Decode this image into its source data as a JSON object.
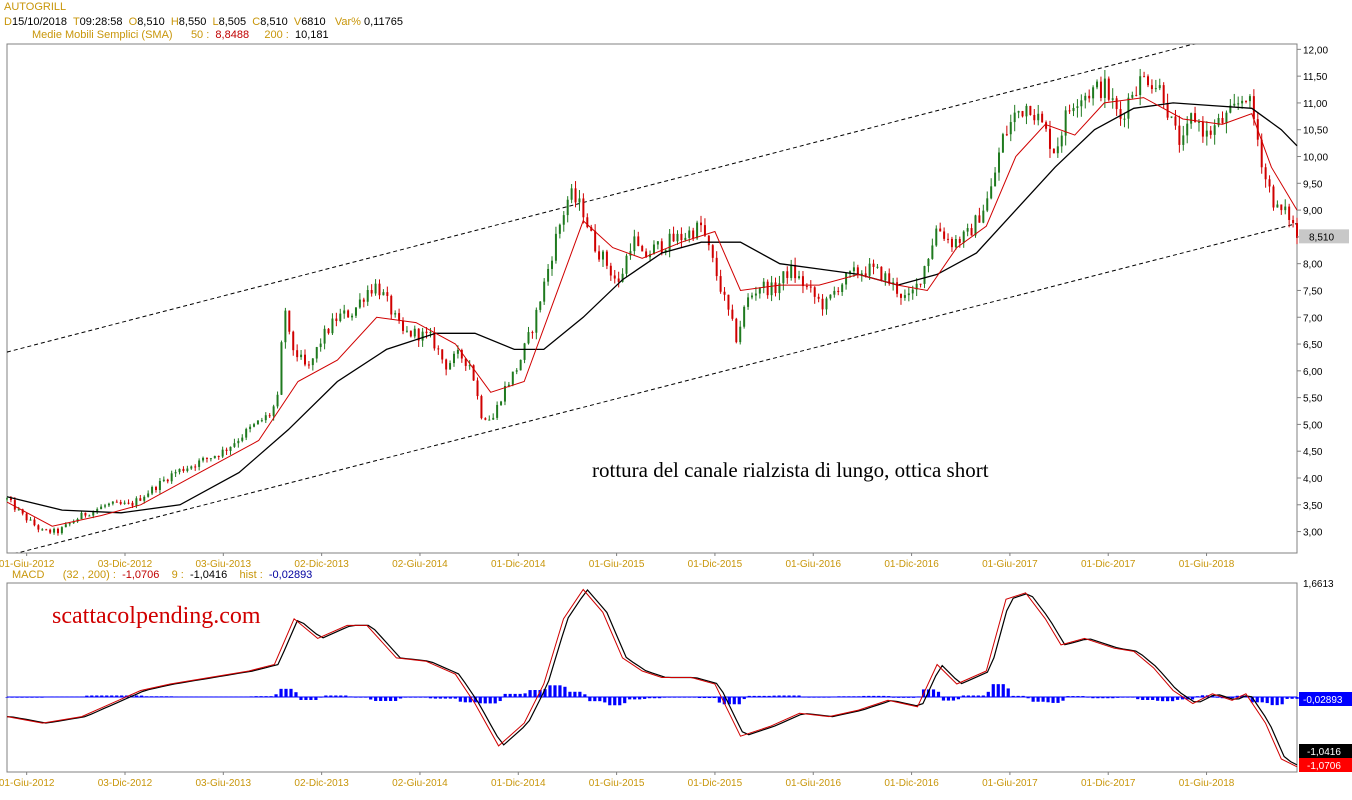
{
  "header": {
    "symbol": "AUTOGRILL",
    "d_label": "D",
    "date": "15/10/2018",
    "t_label": "T",
    "time": "09:28:58",
    "o_label": "O",
    "open": "8,510",
    "h_label": "H",
    "high": "8,550",
    "l_label": "L",
    "low": "8,505",
    "c_label": "C",
    "close": "8,510",
    "v_label": "V",
    "volume": "6810",
    "var_label": "Var%",
    "var": "0,11765"
  },
  "sma_header": {
    "label": "Medie Mobili Semplici (SMA)",
    "p1": "50 :",
    "v1": "8,8488",
    "p2": "200 :",
    "v2": "10,181"
  },
  "macd_header": {
    "label": "MACD",
    "params": "(32 , 200) :",
    "macd": "-1,0706",
    "sig_label": "9 :",
    "signal": "-1,0416",
    "hist_label": "hist :",
    "hist": "-0,02893"
  },
  "colors": {
    "price_up": "#1f7a1f",
    "price_down": "#d00000",
    "sma50": "#d00000",
    "sma200": "#000000",
    "macd": "#d00000",
    "signal": "#000000",
    "hist": "#0000ff",
    "annotation": "#d00000",
    "label_orange": "#c8960a"
  },
  "chart_data": [
    {
      "type": "candlestick",
      "title": "AUTOGRILL",
      "x_ticks": [
        "01-Giu-2012",
        "03-Dic-2012",
        "03-Giu-2013",
        "02-Dic-2013",
        "02-Giu-2014",
        "01-Dic-2014",
        "01-Giu-2015",
        "01-Dic-2015",
        "01-Giu-2016",
        "01-Dic-2016",
        "01-Giu-2017",
        "01-Dic-2017",
        "01-Giu-2018"
      ],
      "y_ticks": [
        "12,00",
        "11,50",
        "11,00",
        "10,50",
        "10,00",
        "9,50",
        "9,00",
        "8,50",
        "8,00",
        "7,50",
        "7,00",
        "6,50",
        "6,00",
        "5,50",
        "5,00",
        "4,50",
        "4,00",
        "3,50",
        "3,00"
      ],
      "ylim": [
        2.6,
        12.1
      ],
      "xlim": [
        2012.32,
        2018.88
      ],
      "last_price_label": "8,510",
      "annotation": "rottura del canale rialzista di lungo, ottica short",
      "price_path": [
        [
          2012.32,
          3.6
        ],
        [
          2012.4,
          3.3
        ],
        [
          2012.5,
          3.0
        ],
        [
          2012.58,
          3.0
        ],
        [
          2012.7,
          3.3
        ],
        [
          2012.83,
          3.5
        ],
        [
          2012.95,
          3.5
        ],
        [
          2013.08,
          3.85
        ],
        [
          2013.17,
          4.1
        ],
        [
          2013.3,
          4.3
        ],
        [
          2013.42,
          4.5
        ],
        [
          2013.55,
          4.9
        ],
        [
          2013.66,
          5.2
        ],
        [
          2013.7,
          5.5
        ],
        [
          2013.73,
          7.3
        ],
        [
          2013.76,
          6.5
        ],
        [
          2013.85,
          6.0
        ],
        [
          2013.92,
          6.6
        ],
        [
          2014.0,
          7.0
        ],
        [
          2014.08,
          7.1
        ],
        [
          2014.15,
          7.5
        ],
        [
          2014.2,
          7.6
        ],
        [
          2014.25,
          7.3
        ],
        [
          2014.33,
          6.7
        ],
        [
          2014.4,
          6.7
        ],
        [
          2014.48,
          6.6
        ],
        [
          2014.55,
          6.1
        ],
        [
          2014.62,
          6.3
        ],
        [
          2014.68,
          6.1
        ],
        [
          2014.73,
          5.2
        ],
        [
          2014.79,
          5.1
        ],
        [
          2014.84,
          5.6
        ],
        [
          2014.92,
          6.1
        ],
        [
          2015.0,
          6.9
        ],
        [
          2015.05,
          7.6
        ],
        [
          2015.12,
          8.6
        ],
        [
          2015.18,
          9.3
        ],
        [
          2015.25,
          9.0
        ],
        [
          2015.3,
          8.4
        ],
        [
          2015.37,
          8.0
        ],
        [
          2015.43,
          7.6
        ],
        [
          2015.5,
          8.5
        ],
        [
          2015.55,
          8.1
        ],
        [
          2015.62,
          8.3
        ],
        [
          2015.68,
          8.4
        ],
        [
          2015.75,
          8.5
        ],
        [
          2015.85,
          8.7
        ],
        [
          2015.92,
          7.9
        ],
        [
          2015.97,
          7.3
        ],
        [
          2016.03,
          6.6
        ],
        [
          2016.08,
          7.3
        ],
        [
          2016.15,
          7.6
        ],
        [
          2016.22,
          7.5
        ],
        [
          2016.3,
          7.9
        ],
        [
          2016.35,
          7.7
        ],
        [
          2016.42,
          7.4
        ],
        [
          2016.48,
          7.2
        ],
        [
          2016.55,
          7.6
        ],
        [
          2016.62,
          7.8
        ],
        [
          2016.7,
          7.9
        ],
        [
          2016.77,
          7.8
        ],
        [
          2016.85,
          7.5
        ],
        [
          2016.9,
          7.3
        ],
        [
          2016.95,
          7.6
        ],
        [
          2017.0,
          8.1
        ],
        [
          2017.05,
          8.7
        ],
        [
          2017.12,
          8.4
        ],
        [
          2017.2,
          8.5
        ],
        [
          2017.25,
          8.8
        ],
        [
          2017.32,
          9.3
        ],
        [
          2017.38,
          10.3
        ],
        [
          2017.45,
          10.8
        ],
        [
          2017.52,
          11.0
        ],
        [
          2017.58,
          10.6
        ],
        [
          2017.65,
          10.1
        ],
        [
          2017.7,
          10.7
        ],
        [
          2017.75,
          11.1
        ],
        [
          2017.82,
          11.2
        ],
        [
          2017.9,
          11.3
        ],
        [
          2017.98,
          10.7
        ],
        [
          2018.05,
          11.3
        ],
        [
          2018.12,
          11.5
        ],
        [
          2018.2,
          11.2
        ],
        [
          2018.25,
          10.5
        ],
        [
          2018.3,
          10.2
        ],
        [
          2018.35,
          10.8
        ],
        [
          2018.42,
          10.4
        ],
        [
          2018.48,
          10.6
        ],
        [
          2018.55,
          10.8
        ],
        [
          2018.62,
          11.2
        ],
        [
          2018.66,
          10.7
        ],
        [
          2018.72,
          9.6
        ],
        [
          2018.78,
          9.0
        ],
        [
          2018.84,
          8.9
        ],
        [
          2018.88,
          8.51
        ]
      ],
      "sma50_path": [
        [
          2012.32,
          3.55
        ],
        [
          2012.55,
          3.1
        ],
        [
          2012.8,
          3.3
        ],
        [
          2013.0,
          3.5
        ],
        [
          2013.3,
          4.1
        ],
        [
          2013.6,
          4.7
        ],
        [
          2013.8,
          5.8
        ],
        [
          2014.0,
          6.2
        ],
        [
          2014.2,
          7.0
        ],
        [
          2014.4,
          6.9
        ],
        [
          2014.6,
          6.5
        ],
        [
          2014.78,
          5.6
        ],
        [
          2014.95,
          5.8
        ],
        [
          2015.1,
          7.3
        ],
        [
          2015.25,
          8.8
        ],
        [
          2015.4,
          8.3
        ],
        [
          2015.55,
          8.1
        ],
        [
          2015.75,
          8.4
        ],
        [
          2015.92,
          8.6
        ],
        [
          2016.05,
          7.5
        ],
        [
          2016.25,
          7.6
        ],
        [
          2016.45,
          7.6
        ],
        [
          2016.65,
          7.8
        ],
        [
          2016.85,
          7.6
        ],
        [
          2017.0,
          7.5
        ],
        [
          2017.15,
          8.3
        ],
        [
          2017.3,
          8.7
        ],
        [
          2017.45,
          10.0
        ],
        [
          2017.6,
          10.6
        ],
        [
          2017.75,
          10.4
        ],
        [
          2017.9,
          11.0
        ],
        [
          2018.1,
          11.1
        ],
        [
          2018.3,
          10.7
        ],
        [
          2018.5,
          10.6
        ],
        [
          2018.65,
          10.8
        ],
        [
          2018.75,
          9.8
        ],
        [
          2018.88,
          9.0
        ]
      ],
      "sma200_path": [
        [
          2012.32,
          3.65
        ],
        [
          2012.6,
          3.4
        ],
        [
          2012.9,
          3.35
        ],
        [
          2013.2,
          3.5
        ],
        [
          2013.5,
          4.1
        ],
        [
          2013.75,
          4.9
        ],
        [
          2014.0,
          5.8
        ],
        [
          2014.25,
          6.4
        ],
        [
          2014.5,
          6.7
        ],
        [
          2014.7,
          6.7
        ],
        [
          2014.9,
          6.4
        ],
        [
          2015.05,
          6.4
        ],
        [
          2015.25,
          7.0
        ],
        [
          2015.45,
          7.7
        ],
        [
          2015.65,
          8.2
        ],
        [
          2015.85,
          8.4
        ],
        [
          2016.05,
          8.4
        ],
        [
          2016.25,
          8.0
        ],
        [
          2016.45,
          7.9
        ],
        [
          2016.65,
          7.8
        ],
        [
          2016.85,
          7.6
        ],
        [
          2017.05,
          7.8
        ],
        [
          2017.25,
          8.2
        ],
        [
          2017.45,
          9.0
        ],
        [
          2017.65,
          9.8
        ],
        [
          2017.85,
          10.5
        ],
        [
          2018.05,
          10.9
        ],
        [
          2018.25,
          11.0
        ],
        [
          2018.45,
          10.95
        ],
        [
          2018.65,
          10.9
        ],
        [
          2018.8,
          10.5
        ],
        [
          2018.88,
          10.2
        ]
      ],
      "channel_upper": [
        [
          2012.32,
          6.35
        ],
        [
          2018.88,
          12.6
        ]
      ],
      "channel_lower": [
        [
          2012.32,
          2.55
        ],
        [
          2018.88,
          8.75
        ]
      ]
    },
    {
      "type": "line",
      "title": "MACD",
      "x_ticks": [
        "01-Giu-2012",
        "03-Dic-2012",
        "03-Giu-2013",
        "02-Dic-2013",
        "02-Giu-2014",
        "01-Dic-2014",
        "01-Giu-2015",
        "01-Dic-2015",
        "01-Giu-2016",
        "01-Dic-2016",
        "01-Giu-2017",
        "01-Dic-2017",
        "01-Giu-2018"
      ],
      "y_ticks": [
        "1,6613"
      ],
      "ylim": [
        -1.15,
        1.75
      ],
      "xlim": [
        2012.32,
        2018.88
      ],
      "annotation": "scattacolpending.com",
      "value_labels": {
        "hist": "-0,02893",
        "signal": "-1,0416",
        "macd": "-1,0706"
      },
      "macd_path": [
        [
          2012.32,
          -0.3
        ],
        [
          2012.5,
          -0.4
        ],
        [
          2012.7,
          -0.3
        ],
        [
          2012.85,
          -0.1
        ],
        [
          2013.0,
          0.1
        ],
        [
          2013.15,
          0.2
        ],
        [
          2013.35,
          0.3
        ],
        [
          2013.55,
          0.4
        ],
        [
          2013.68,
          0.5
        ],
        [
          2013.78,
          1.2
        ],
        [
          2013.9,
          0.9
        ],
        [
          2014.05,
          1.1
        ],
        [
          2014.15,
          1.1
        ],
        [
          2014.3,
          0.6
        ],
        [
          2014.45,
          0.55
        ],
        [
          2014.6,
          0.35
        ],
        [
          2014.7,
          -0.1
        ],
        [
          2014.82,
          -0.75
        ],
        [
          2014.95,
          -0.4
        ],
        [
          2015.05,
          0.2
        ],
        [
          2015.15,
          1.2
        ],
        [
          2015.25,
          1.65
        ],
        [
          2015.35,
          1.3
        ],
        [
          2015.45,
          0.6
        ],
        [
          2015.55,
          0.4
        ],
        [
          2015.65,
          0.3
        ],
        [
          2015.8,
          0.3
        ],
        [
          2015.92,
          0.2
        ],
        [
          2016.05,
          -0.6
        ],
        [
          2016.2,
          -0.45
        ],
        [
          2016.35,
          -0.25
        ],
        [
          2016.5,
          -0.3
        ],
        [
          2016.65,
          -0.2
        ],
        [
          2016.8,
          -0.05
        ],
        [
          2016.95,
          -0.15
        ],
        [
          2017.05,
          0.5
        ],
        [
          2017.15,
          0.2
        ],
        [
          2017.3,
          0.4
        ],
        [
          2017.4,
          1.5
        ],
        [
          2017.5,
          1.6
        ],
        [
          2017.6,
          1.2
        ],
        [
          2017.68,
          0.8
        ],
        [
          2017.8,
          0.9
        ],
        [
          2017.95,
          0.75
        ],
        [
          2018.05,
          0.7
        ],
        [
          2018.15,
          0.45
        ],
        [
          2018.25,
          0.1
        ],
        [
          2018.35,
          -0.1
        ],
        [
          2018.45,
          0.05
        ],
        [
          2018.55,
          -0.05
        ],
        [
          2018.62,
          0.05
        ],
        [
          2018.72,
          -0.4
        ],
        [
          2018.8,
          -0.95
        ],
        [
          2018.88,
          -1.0706
        ]
      ]
    }
  ]
}
